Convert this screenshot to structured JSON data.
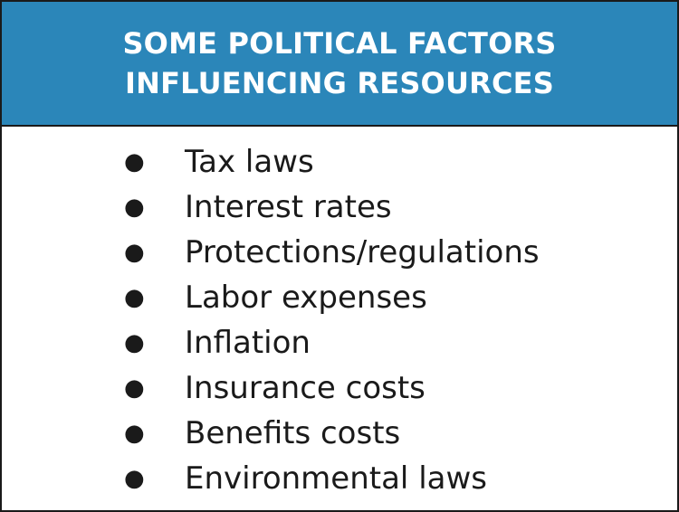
{
  "header": {
    "title_line1": "SOME POLITICAL FACTORS",
    "title_line2": "INFLUENCING RESOURCES"
  },
  "bullet_glyph": "●",
  "items": [
    "Tax laws",
    "Interest rates",
    "Protections/regulations",
    "Labor expenses",
    "Inflation",
    "Insurance costs",
    "Benefits costs",
    "Environmental laws"
  ],
  "colors": {
    "header_background": "#2b86b9",
    "header_text": "#ffffff",
    "body_text": "#1a1a1a",
    "border": "#1a1a1a"
  }
}
